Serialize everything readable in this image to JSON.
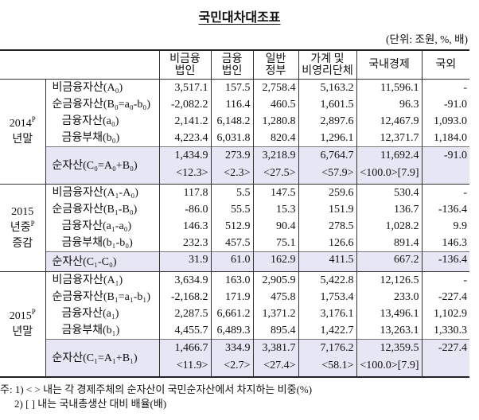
{
  "title": "국민대차대조표",
  "units": "(단위: 조원, %, 배)",
  "columns": [
    "비금융\n법인",
    "금융\n법인",
    "일반\n정부",
    "가계 및\n비영리단체",
    "국내경제",
    "국외"
  ],
  "groups": [
    {
      "period": {
        "year": "2014",
        "sup": "P",
        "line2": "년말",
        "line2_sup": "",
        "line3": ""
      },
      "rows": [
        {
          "label": "비금융자산(A₀)",
          "indent": false,
          "values": [
            "3,517.1",
            "157.5",
            "2,758.4",
            "5,163.2",
            "11,596.1",
            "-"
          ]
        },
        {
          "label": "순금융자산(B₀=a₀-b₀)",
          "indent": false,
          "values": [
            "-2,082.2",
            "116.4",
            "460.5",
            "1,601.5",
            "96.3",
            "-91.0"
          ]
        },
        {
          "label": "금융자산(a₀)",
          "indent": true,
          "values": [
            "2,141.2",
            "6,148.2",
            "1,280.8",
            "2,897.6",
            "12,467.9",
            "1,093.0"
          ]
        },
        {
          "label": "금융부채(b₀)",
          "indent": true,
          "values": [
            "4,223.4",
            "6,031.8",
            "820.4",
            "1,296.1",
            "12,371.7",
            "1,184.0"
          ]
        }
      ],
      "net": {
        "label": "순자산(C₀=A₀+B₀)",
        "values": [
          "1,434.9",
          "273.9",
          "3,218.9",
          "6,764.7",
          "11,692.4",
          "-91.0"
        ],
        "shares": [
          "<12.3>",
          "<2.3>",
          "<27.5>",
          "<57.9>",
          "<100.0>[7.9]",
          ""
        ]
      }
    },
    {
      "period": {
        "year": "2015",
        "sup": "",
        "line2": "년중",
        "line2_sup": "P",
        "line3": "증감"
      },
      "rows": [
        {
          "label": "비금융자산(A₁-A₀)",
          "indent": false,
          "values": [
            "117.8",
            "5.5",
            "147.5",
            "259.6",
            "530.4",
            "-"
          ]
        },
        {
          "label": "순금융자산(B₁-B₀)",
          "indent": false,
          "values": [
            "-86.0",
            "55.5",
            "15.3",
            "151.9",
            "136.7",
            "-136.4"
          ]
        },
        {
          "label": "금융자산(a₁-a₀)",
          "indent": true,
          "values": [
            "146.3",
            "512.9",
            "90.4",
            "278.5",
            "1,028.2",
            "9.9"
          ]
        },
        {
          "label": "금융부채(b₁-b₀)",
          "indent": true,
          "values": [
            "232.3",
            "457.5",
            "75.1",
            "126.6",
            "891.4",
            "146.3"
          ]
        }
      ],
      "net": {
        "label": "순자산(C₁-C₀)",
        "values": [
          "31.9",
          "61.0",
          "162.9",
          "411.5",
          "667.2",
          "-136.4"
        ],
        "shares": null
      }
    },
    {
      "period": {
        "year": "2015",
        "sup": "P",
        "line2": "년말",
        "line2_sup": "",
        "line3": ""
      },
      "rows": [
        {
          "label": "비금융자산(A₁)",
          "indent": false,
          "values": [
            "3,634.9",
            "163.0",
            "2,905.9",
            "5,422.8",
            "12,126.5",
            "-"
          ]
        },
        {
          "label": "순금융자산(B₁=a₁-b₁)",
          "indent": false,
          "values": [
            "-2,168.2",
            "171.9",
            "475.8",
            "1,753.4",
            "233.0",
            "-227.4"
          ]
        },
        {
          "label": "금융자산(a₁)",
          "indent": true,
          "values": [
            "2,287.5",
            "6,661.2",
            "1,371.2",
            "3,176.1",
            "13,496.1",
            "1,102.9"
          ]
        },
        {
          "label": "금융부채(b₁)",
          "indent": true,
          "values": [
            "4,455.7",
            "6,489.3",
            "895.4",
            "1,422.7",
            "13,263.1",
            "1,330.3"
          ]
        }
      ],
      "net": {
        "label": "순자산(C₁=A₁+B₁)",
        "values": [
          "1,466.7",
          "334.9",
          "3,381.7",
          "7,176.2",
          "12,359.5",
          "-227.4"
        ],
        "shares": [
          "<11.9>",
          "<2.7>",
          "<27.4>",
          "<58.1>",
          "<100.0>[7.9]",
          ""
        ]
      }
    }
  ],
  "notes": [
    "주: 1) <  > 내는 각 경제주체의 순자산이 국민순자산에서 차지하는 비중(%)",
    "2) [  ] 내는 국내총생산 대비 배율(배)"
  ],
  "colors": {
    "net_row_fill": "#e6e6f4"
  }
}
